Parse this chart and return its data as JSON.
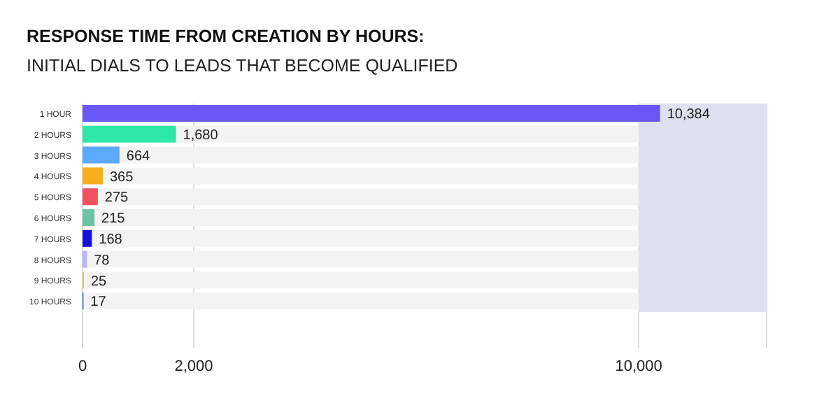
{
  "chart_data": {
    "type": "bar",
    "orientation": "horizontal",
    "title": "RESPONSE TIME FROM CREATION BY HOURS:",
    "subtitle": "INITIAL DIALS TO LEADS THAT BECOME QUALIFIED",
    "categories": [
      "1 HOUR",
      "2 HOURS",
      "3 HOURS",
      "4 HOURS",
      "5 HOURS",
      "6 HOURS",
      "7 HOURS",
      "8 HOURS",
      "9 HOURS",
      "10 HOURS"
    ],
    "values": [
      10384,
      1680,
      664,
      365,
      275,
      215,
      168,
      78,
      25,
      17
    ],
    "colors": [
      "#6b57f8",
      "#2ee6a8",
      "#5aa9fb",
      "#f5b01c",
      "#f0505f",
      "#6cc4a6",
      "#1410e0",
      "#b8b5f8",
      "#f0b860",
      "#2a5ab8"
    ],
    "xlim": [
      0,
      12300
    ],
    "xticks": [
      0,
      {
        "value": 2000,
        "label": "2,000"
      },
      {
        "value": 10000,
        "label": "10,000"
      }
    ],
    "bands": [
      {
        "axis": "x",
        "from": 10000,
        "to": 12300,
        "color": "#dfe1f0"
      }
    ],
    "value_labels": [
      "10,384",
      "1,680",
      "664",
      "365",
      "275",
      "215",
      "168",
      "78",
      "25",
      "17"
    ],
    "grid": "x"
  }
}
